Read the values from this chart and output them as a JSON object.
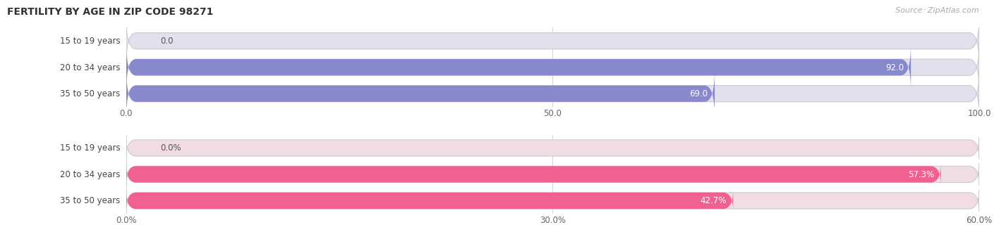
{
  "title": "FERTILITY BY AGE IN ZIP CODE 98271",
  "source": "Source: ZipAtlas.com",
  "top_chart": {
    "categories": [
      "15 to 19 years",
      "20 to 34 years",
      "35 to 50 years"
    ],
    "values": [
      0.0,
      92.0,
      69.0
    ],
    "bar_color": "#8888cc",
    "track_color": "#e0e0ee",
    "xlim": [
      0,
      100
    ],
    "xticks": [
      0.0,
      50.0,
      100.0
    ],
    "xtick_labels": [
      "0.0",
      "50.0",
      "100.0"
    ],
    "label_inside": [
      false,
      true,
      true
    ],
    "value_fmt": ""
  },
  "bottom_chart": {
    "categories": [
      "15 to 19 years",
      "20 to 34 years",
      "35 to 50 years"
    ],
    "values": [
      0.0,
      57.3,
      42.7
    ],
    "bar_color": "#f06090",
    "track_color": "#f0dce4",
    "xlim": [
      0,
      60
    ],
    "xticks": [
      0.0,
      30.0,
      60.0
    ],
    "xtick_labels": [
      "0.0%",
      "30.0%",
      "60.0%"
    ],
    "label_inside": [
      false,
      true,
      true
    ],
    "value_fmt": "%"
  },
  "bar_height": 0.62,
  "title_color": "#333333",
  "source_color": "#aaaaaa",
  "fig_bg": "#ffffff",
  "cat_label_fontsize": 8.5,
  "val_label_fontsize": 8.5,
  "tick_fontsize": 8.5
}
